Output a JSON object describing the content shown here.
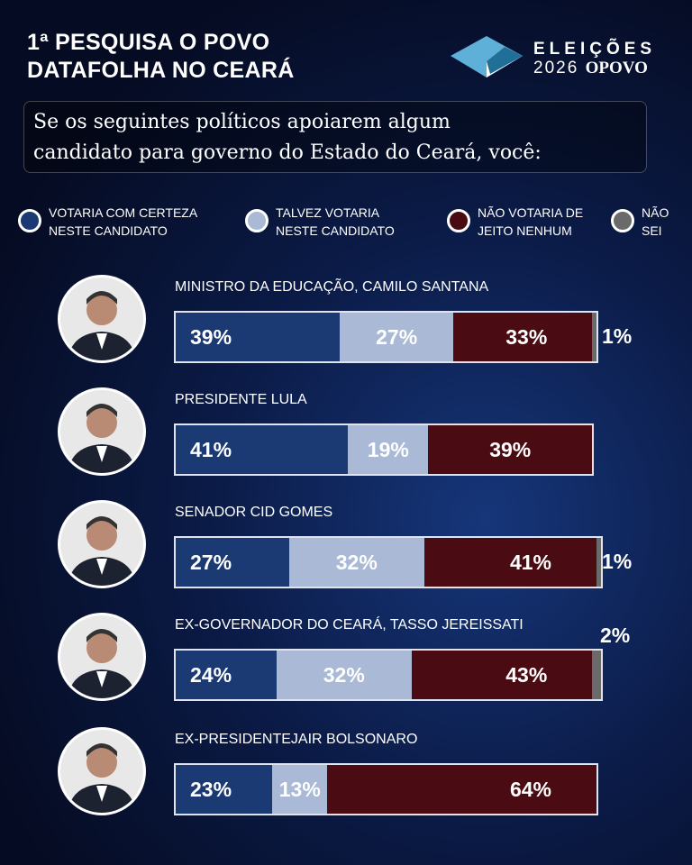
{
  "header": {
    "title_line1": "1ª PESQUISA O POVO",
    "title_line2": "DATAFOLHA NO CEARÁ",
    "logo_line1": "ELEIÇÕES",
    "logo_year": "2026",
    "logo_brand": "OPOVO"
  },
  "question": {
    "line1": "Se os seguintes políticos apoiarem algum",
    "line2": "candidato para governo do Estado do Ceará, você:"
  },
  "chart_data": {
    "type": "bar",
    "stacked": true,
    "orientation": "horizontal",
    "series": [
      {
        "name": "VOTARIA COM CERTEZA NESTE CANDIDATO",
        "color": "#1b3a74",
        "values": [
          39,
          41,
          27,
          24,
          23
        ]
      },
      {
        "name": "TALVEZ VOTARIA NESTE CANDIDATO",
        "color": "#a9b9d6",
        "values": [
          27,
          19,
          32,
          32,
          13
        ]
      },
      {
        "name": "NÃO VOTARIA DE JEITO NENHUM",
        "color": "#4a0c12",
        "values": [
          33,
          39,
          41,
          43,
          64
        ]
      },
      {
        "name": "NÃO SEI",
        "color": "#6a6a6a",
        "values": [
          1,
          null,
          1,
          2,
          null
        ]
      }
    ],
    "categories": [
      "MINISTRO DA EDUCAÇÃO, CAMILO SANTANA",
      "PRESIDENTE LULA",
      "SENADOR CID GOMES",
      "EX-GOVERNADOR DO CEARÁ, TASSO JEREISSATI",
      "EX-PRESIDENTEJAIR BOLSONARO"
    ],
    "unit": "%"
  }
}
